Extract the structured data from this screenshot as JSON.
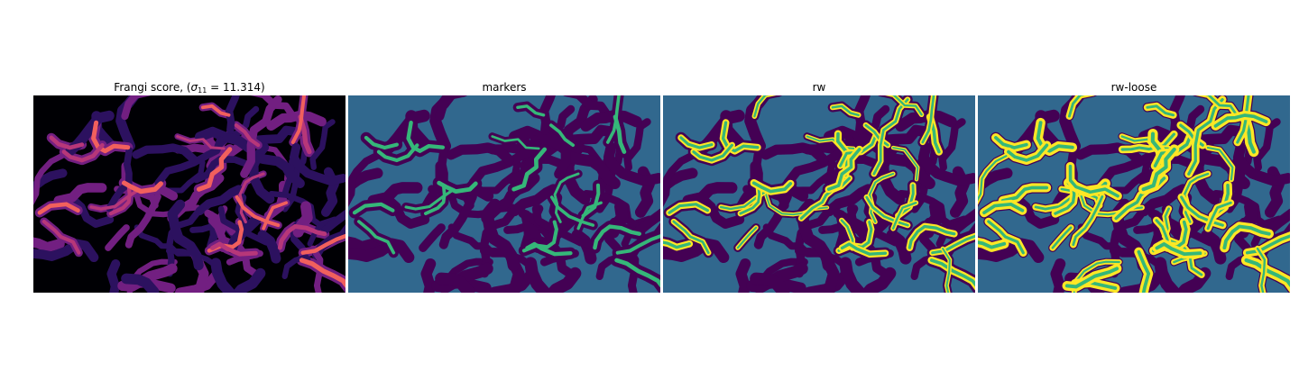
{
  "figure": {
    "panels": [
      {
        "id": "frangi",
        "title_prefix": "Frangi score, (",
        "title_symbol": "σ",
        "title_sub": "11",
        "title_suffix": " = 11.314)",
        "colormap": "magma"
      },
      {
        "id": "markers",
        "title": "markers",
        "colormap": "viridis"
      },
      {
        "id": "rw",
        "title": "rw",
        "colormap": "viridis"
      },
      {
        "id": "rwloose",
        "title": "rw-loose",
        "colormap": "viridis"
      }
    ]
  },
  "colors": {
    "magma_bg": "#000004",
    "magma_low": "#2c115f",
    "magma_mid": "#721f81",
    "magma_high": "#b73779",
    "magma_peak": "#f1605d",
    "viridis_dark": "#440154",
    "viridis_bg": "#31688e",
    "viridis_green": "#35b779",
    "viridis_yellow": "#fde725"
  }
}
